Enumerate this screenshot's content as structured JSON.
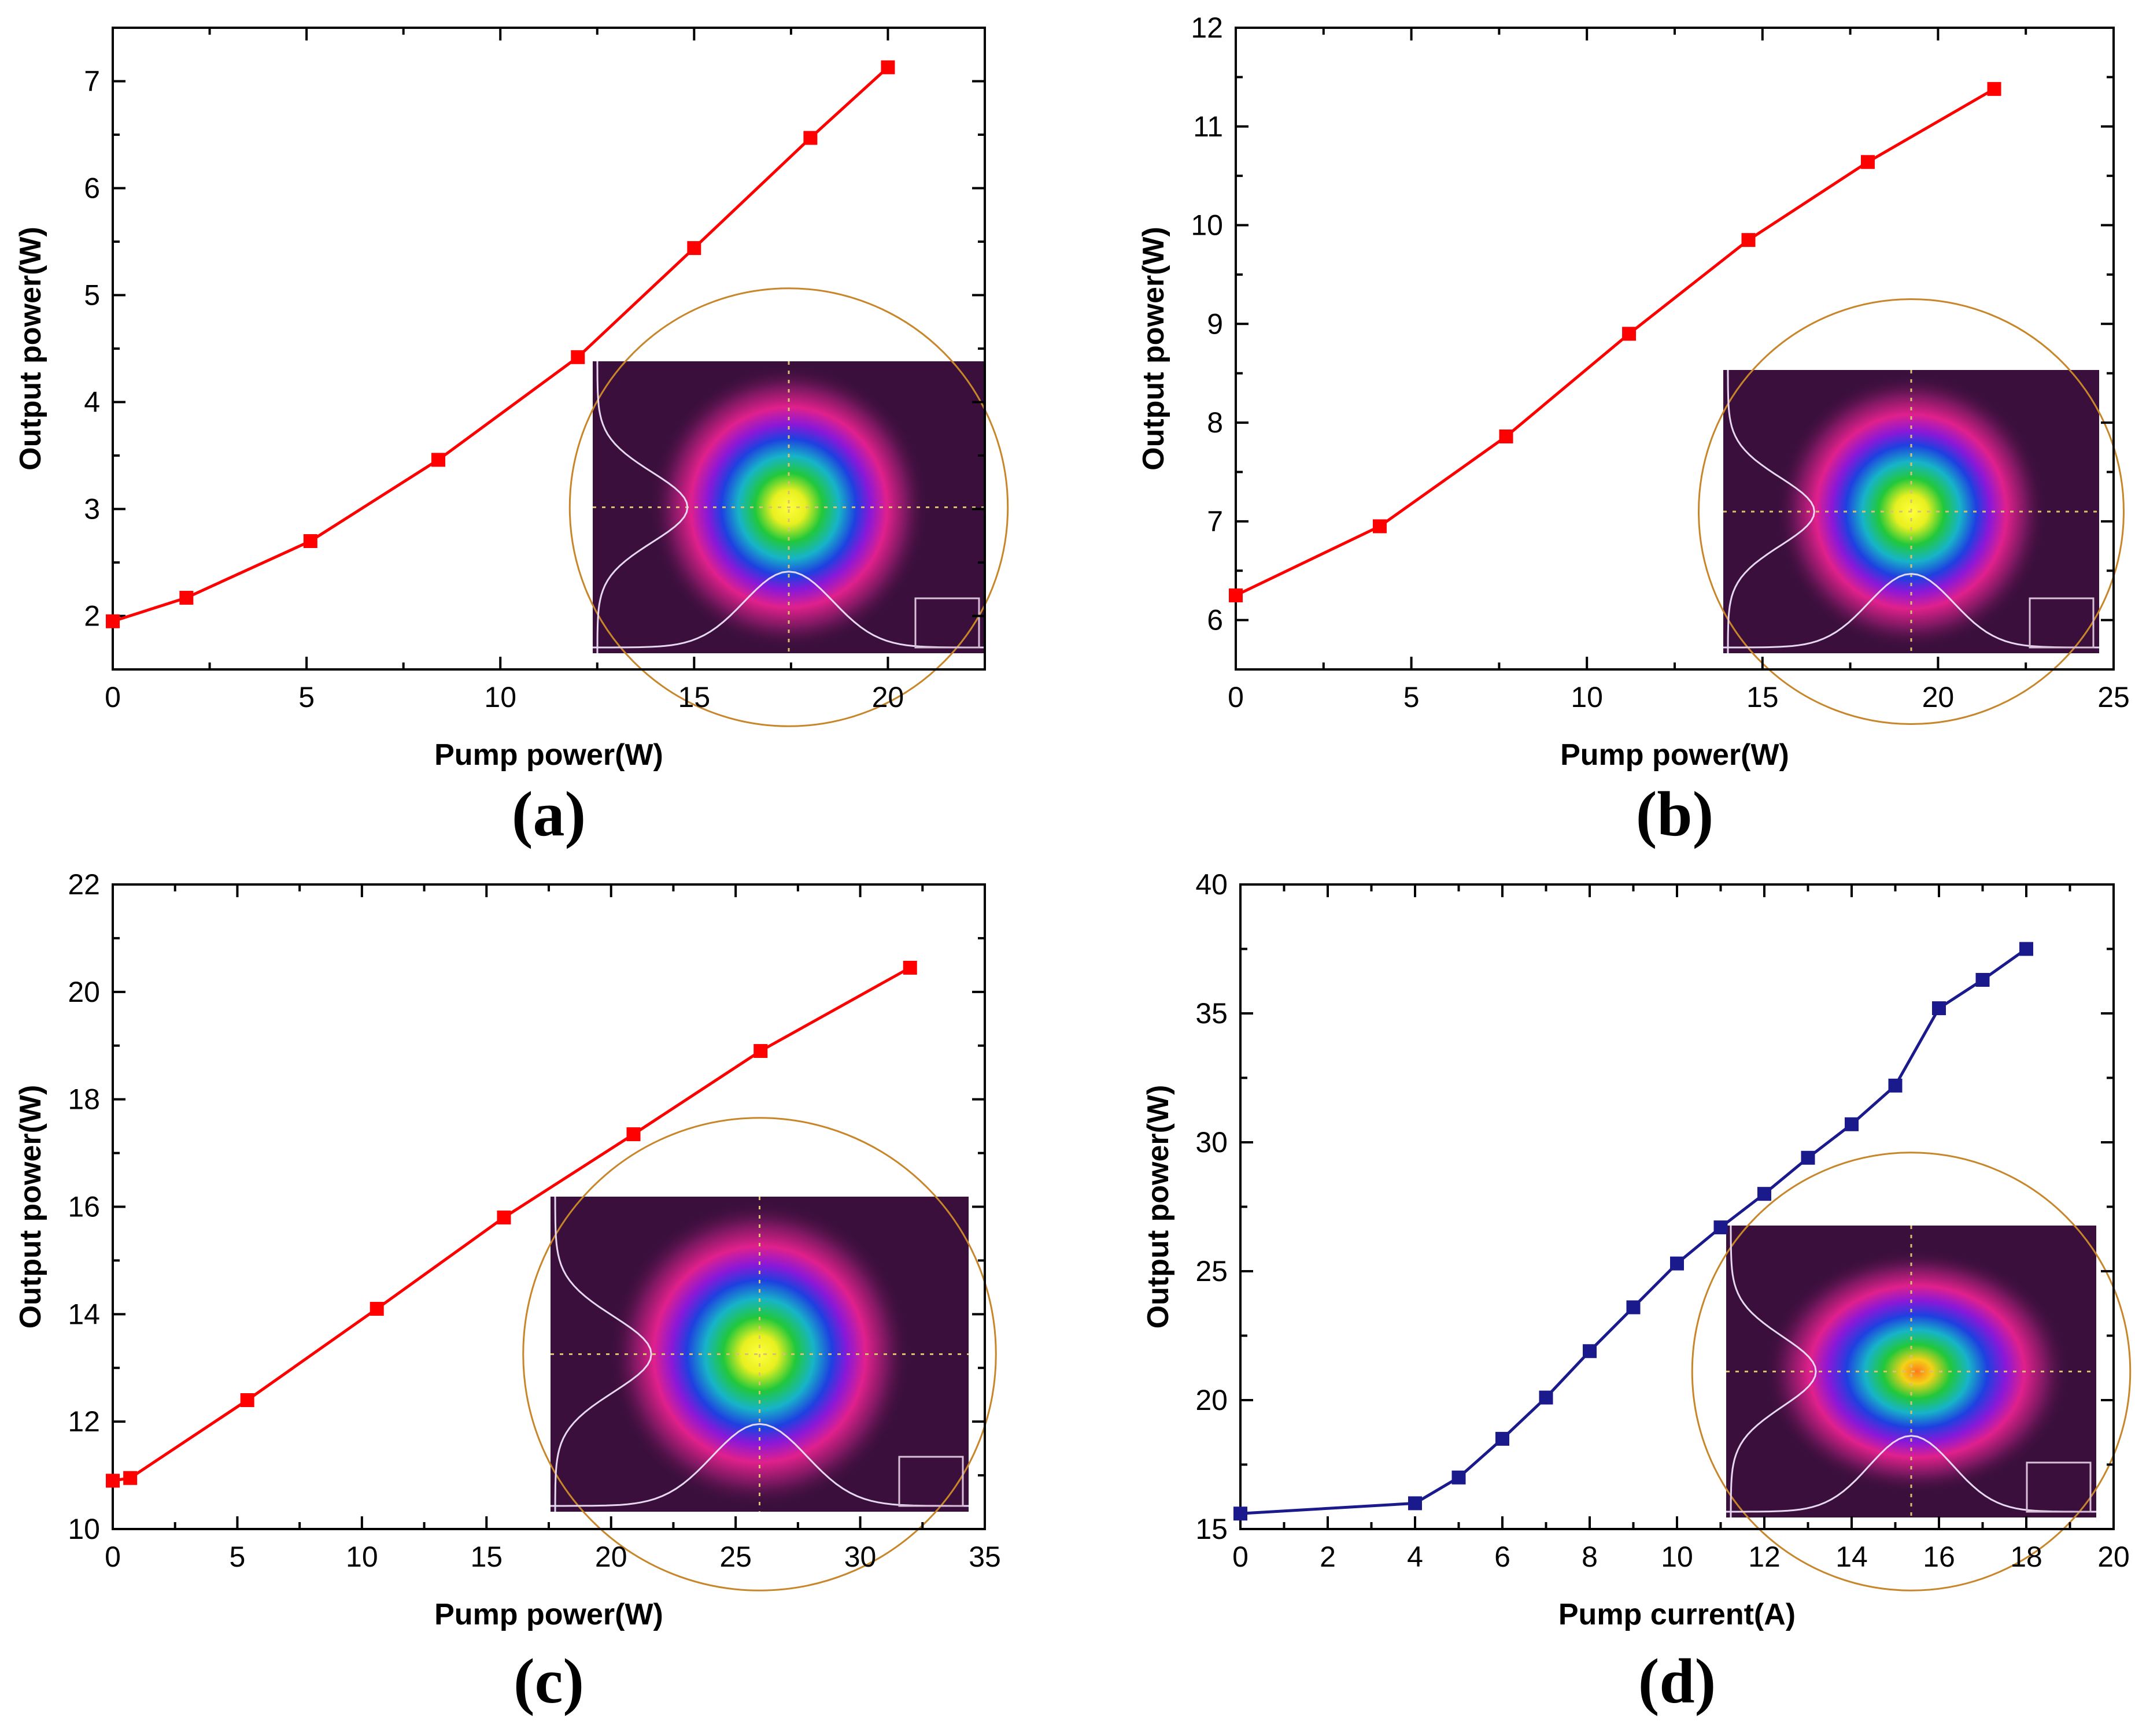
{
  "chart_data": [
    {
      "type": "line",
      "panel_label": "(a)",
      "xlabel": "Pump power(W)",
      "ylabel": "Output power(W)",
      "xlim": [
        0,
        22.5
      ],
      "ylim": [
        1.5,
        7.5
      ],
      "xticks": [
        0,
        5,
        10,
        15,
        20
      ],
      "yticks": [
        2,
        3,
        4,
        5,
        6,
        7
      ],
      "color": "#ff0000",
      "series": [
        {
          "name": "output",
          "x": [
            0,
            1.9,
            5.1,
            8.4,
            12.0,
            15.0,
            18.0,
            20.0
          ],
          "y": [
            1.95,
            2.17,
            2.7,
            3.46,
            4.42,
            5.44,
            6.47,
            7.13
          ]
        }
      ],
      "inset": "beam-profile"
    },
    {
      "type": "line",
      "panel_label": "(b)",
      "xlabel": "Pump power(W)",
      "ylabel": "Output power(W)",
      "xlim": [
        0,
        25
      ],
      "ylim": [
        5.5,
        12
      ],
      "xticks": [
        0,
        5,
        10,
        15,
        20,
        25
      ],
      "yticks": [
        6,
        7,
        8,
        9,
        10,
        11,
        12
      ],
      "color": "#ff0000",
      "series": [
        {
          "name": "output",
          "x": [
            0,
            4.1,
            7.7,
            11.2,
            14.6,
            18.0,
            21.6
          ],
          "y": [
            6.25,
            6.95,
            7.86,
            8.9,
            9.85,
            10.64,
            11.38
          ]
        }
      ],
      "inset": "beam-profile"
    },
    {
      "type": "line",
      "panel_label": "(c)",
      "xlabel": "Pump power(W)",
      "ylabel": "Output power(W)",
      "xlim": [
        0,
        35
      ],
      "ylim": [
        10,
        22
      ],
      "xticks": [
        0,
        5,
        10,
        15,
        20,
        25,
        30,
        35
      ],
      "yticks": [
        10,
        12,
        14,
        16,
        18,
        20,
        22
      ],
      "color": "#ff0000",
      "series": [
        {
          "name": "output",
          "x": [
            0,
            0.7,
            5.4,
            10.6,
            15.7,
            20.9,
            26.0,
            32.0
          ],
          "y": [
            10.9,
            10.95,
            12.4,
            14.1,
            15.8,
            17.35,
            18.9,
            20.45
          ]
        }
      ],
      "inset": "beam-profile"
    },
    {
      "type": "line",
      "panel_label": "(d)",
      "xlabel": "Pump current(A)",
      "ylabel": "Output power(W)",
      "xlim": [
        0,
        20
      ],
      "ylim": [
        15,
        40
      ],
      "xticks": [
        0,
        2,
        4,
        6,
        8,
        10,
        12,
        14,
        16,
        18,
        20
      ],
      "yticks": [
        15,
        20,
        25,
        30,
        35,
        40
      ],
      "color": "#1a1a8c",
      "series": [
        {
          "name": "output",
          "x": [
            0,
            4,
            5,
            6,
            7,
            8,
            9,
            10,
            11,
            12,
            13,
            14,
            15,
            16,
            17,
            18
          ],
          "y": [
            15.6,
            16.0,
            17.0,
            18.5,
            20.1,
            21.9,
            23.6,
            25.3,
            26.7,
            28.0,
            29.4,
            30.7,
            32.2,
            35.2,
            36.3,
            37.5
          ]
        }
      ],
      "inset": "beam-profile-irregular"
    }
  ]
}
